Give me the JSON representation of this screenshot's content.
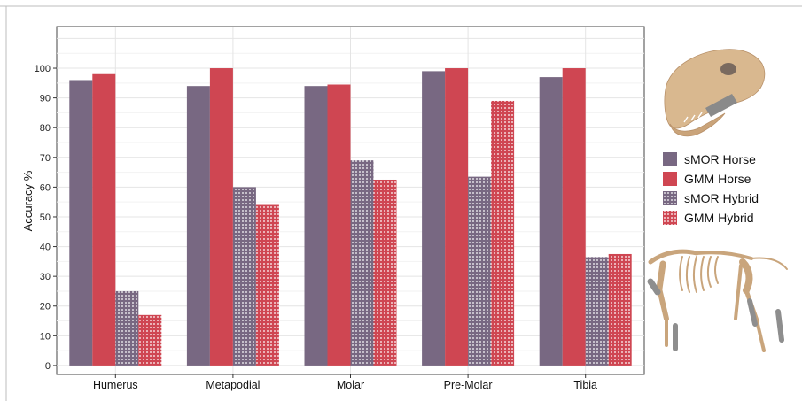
{
  "chart_data": {
    "type": "bar",
    "title": "",
    "xlabel": "",
    "ylabel": "Accuracy %",
    "ylim": [
      -3,
      114
    ],
    "yticks": [
      0,
      10,
      20,
      30,
      40,
      50,
      60,
      70,
      80,
      90,
      100
    ],
    "grid": true,
    "legend_position": "right",
    "categories": [
      "Humerus",
      "Metapodial",
      "Molar",
      "Pre-Molar",
      "Tibia"
    ],
    "series": [
      {
        "name": "sMOR Horse",
        "color": "#786882",
        "pattern": "solid",
        "values": [
          96,
          94,
          94,
          99,
          97
        ]
      },
      {
        "name": "GMM Horse",
        "color": "#cf4652",
        "pattern": "solid",
        "values": [
          98,
          100,
          94.5,
          100,
          100
        ]
      },
      {
        "name": "sMOR Hybrid",
        "color": "#786882",
        "pattern": "dotted",
        "values": [
          25,
          60,
          69,
          63.5,
          36.5
        ]
      },
      {
        "name": "GMM Hybrid",
        "color": "#cf4652",
        "pattern": "dotted",
        "values": [
          17,
          54,
          62.5,
          89,
          37.5
        ]
      }
    ],
    "illustrations": [
      "horse-skull-icon",
      "horse-skeleton-icon"
    ]
  }
}
